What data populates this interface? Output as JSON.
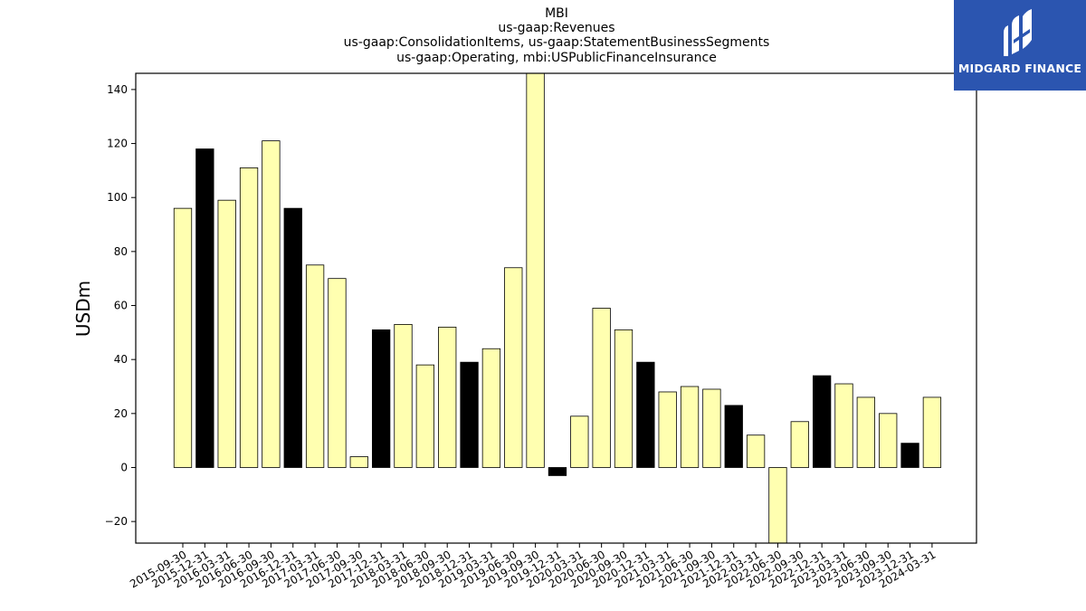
{
  "header": {
    "title_lines": [
      "MBI",
      "us-gaap:Revenues",
      "us-gaap:ConsolidationItems, us-gaap:StatementBusinessSegments",
      "us-gaap:Operating, mbi:USPublicFinanceInsurance"
    ]
  },
  "brand": {
    "name": "MIDGARD FINANCE",
    "color": "#2b55b0"
  },
  "chart_data": {
    "type": "bar",
    "title": "MBI\nus-gaap:Revenues\nus-gaap:ConsolidationItems, us-gaap:StatementBusinessSegments\nus-gaap:Operating, mbi:USPublicFinanceInsurance",
    "xlabel": "",
    "ylabel": "USDm",
    "ylim": [
      -28,
      146
    ],
    "yticks": [
      -20,
      0,
      20,
      40,
      60,
      80,
      100,
      120,
      140
    ],
    "grid": false,
    "categories": [
      "2015-09-30",
      "2015-12-31",
      "2016-03-31",
      "2016-06-30",
      "2016-09-30",
      "2016-12-31",
      "2017-03-31",
      "2017-06-30",
      "2017-09-30",
      "2017-12-31",
      "2018-03-31",
      "2018-06-30",
      "2018-09-30",
      "2018-12-31",
      "2019-03-31",
      "2019-06-30",
      "2019-09-30",
      "2019-12-31",
      "2020-03-31",
      "2020-06-30",
      "2020-09-30",
      "2020-12-31",
      "2021-03-31",
      "2021-06-30",
      "2021-09-30",
      "2021-12-31",
      "2022-03-31",
      "2022-06-30",
      "2022-09-30",
      "2022-12-31",
      "2023-03-31",
      "2023-06-30",
      "2023-09-30",
      "2023-12-31",
      "2024-03-31"
    ],
    "values": [
      96,
      118,
      99,
      111,
      121,
      96,
      75,
      70,
      4,
      51,
      53,
      38,
      52,
      39,
      44,
      74,
      146,
      -3,
      19,
      59,
      51,
      39,
      28,
      30,
      29,
      23,
      12,
      -28,
      17,
      34,
      31,
      26,
      20,
      9,
      26
    ],
    "bar_colors": [
      "#ffffb0",
      "#000000",
      "#ffffb0",
      "#ffffb0",
      "#ffffb0",
      "#000000",
      "#ffffb0",
      "#ffffb0",
      "#ffffb0",
      "#000000",
      "#ffffb0",
      "#ffffb0",
      "#ffffb0",
      "#000000",
      "#ffffb0",
      "#ffffb0",
      "#ffffb0",
      "#000000",
      "#ffffb0",
      "#ffffb0",
      "#ffffb0",
      "#000000",
      "#ffffb0",
      "#ffffb0",
      "#ffffb0",
      "#000000",
      "#ffffb0",
      "#ffffb0",
      "#ffffb0",
      "#000000",
      "#ffffb0",
      "#ffffb0",
      "#ffffb0",
      "#000000",
      "#ffffb0"
    ]
  }
}
